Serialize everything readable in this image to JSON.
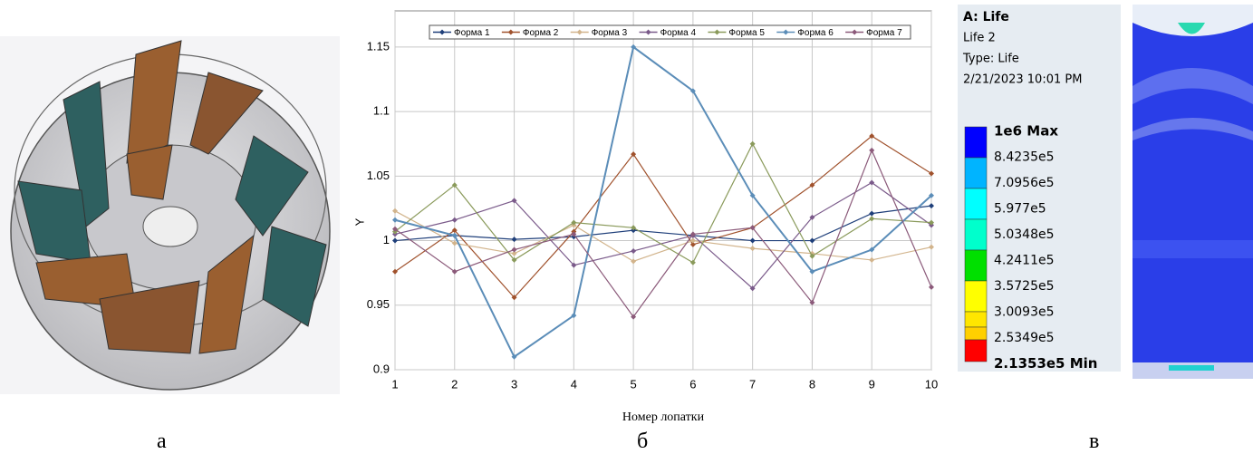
{
  "chart_data": {
    "type": "line",
    "y_label": "Y",
    "x_label": "Номер лопатки",
    "x": [
      1,
      2,
      3,
      4,
      5,
      6,
      7,
      8,
      9,
      10
    ],
    "xlim": [
      1,
      10
    ],
    "xticks": [
      1,
      2,
      3,
      4,
      5,
      6,
      7,
      8,
      9,
      10
    ],
    "ylim": [
      0.9,
      1.178
    ],
    "yticks": [
      0.9,
      0.95,
      1,
      1.05,
      1.1,
      1.15
    ],
    "grid": true,
    "legend": "top",
    "series": [
      {
        "name": "Форма 1",
        "color": "#1f3f7a",
        "values": [
          1.0,
          1.004,
          1.001,
          1.003,
          1.008,
          1.004,
          1.0,
          1.0,
          1.021,
          1.027
        ]
      },
      {
        "name": "Форма 2",
        "color": "#a0522d",
        "values": [
          0.976,
          1.008,
          0.956,
          1.007,
          1.067,
          0.997,
          1.01,
          1.043,
          1.081,
          1.052
        ]
      },
      {
        "name": "Форма 3",
        "color": "#d2b48c",
        "values": [
          1.023,
          0.998,
          0.99,
          1.012,
          0.984,
          1.0,
          0.994,
          0.99,
          0.985,
          0.995
        ]
      },
      {
        "name": "Форма 4",
        "color": "#7a5a8a",
        "values": [
          1.005,
          1.016,
          1.031,
          0.981,
          0.992,
          1.004,
          0.963,
          1.018,
          1.045,
          1.012
        ]
      },
      {
        "name": "Форма 5",
        "color": "#8a9a5b",
        "values": [
          1.007,
          1.043,
          0.985,
          1.014,
          1.01,
          0.983,
          1.075,
          0.988,
          1.017,
          1.014
        ]
      },
      {
        "name": "Форма 6",
        "color": "#5b8db8",
        "values": [
          1.016,
          1.004,
          0.91,
          0.942,
          1.15,
          1.116,
          1.035,
          0.976,
          0.993,
          1.035
        ]
      },
      {
        "name": "Форма 7",
        "color": "#8b5a7a",
        "values": [
          1.009,
          0.976,
          0.993,
          1.005,
          0.941,
          1.005,
          1.01,
          0.952,
          1.07,
          0.964
        ]
      }
    ]
  },
  "captions": [
    "а",
    "б",
    "в"
  ],
  "result_panel": {
    "title": "A: Life",
    "subtitle": "Life 2",
    "type": "Type: Life",
    "date": "2/21/2023 10:01 PM",
    "levels": [
      "1e6 Max",
      "8.4235e5",
      "7.0956e5",
      "5.977e5",
      "5.0348e5",
      "4.2411e5",
      "3.5725e5",
      "3.0093e5",
      "2.5349e5",
      "2.1353e5 Min"
    ]
  }
}
